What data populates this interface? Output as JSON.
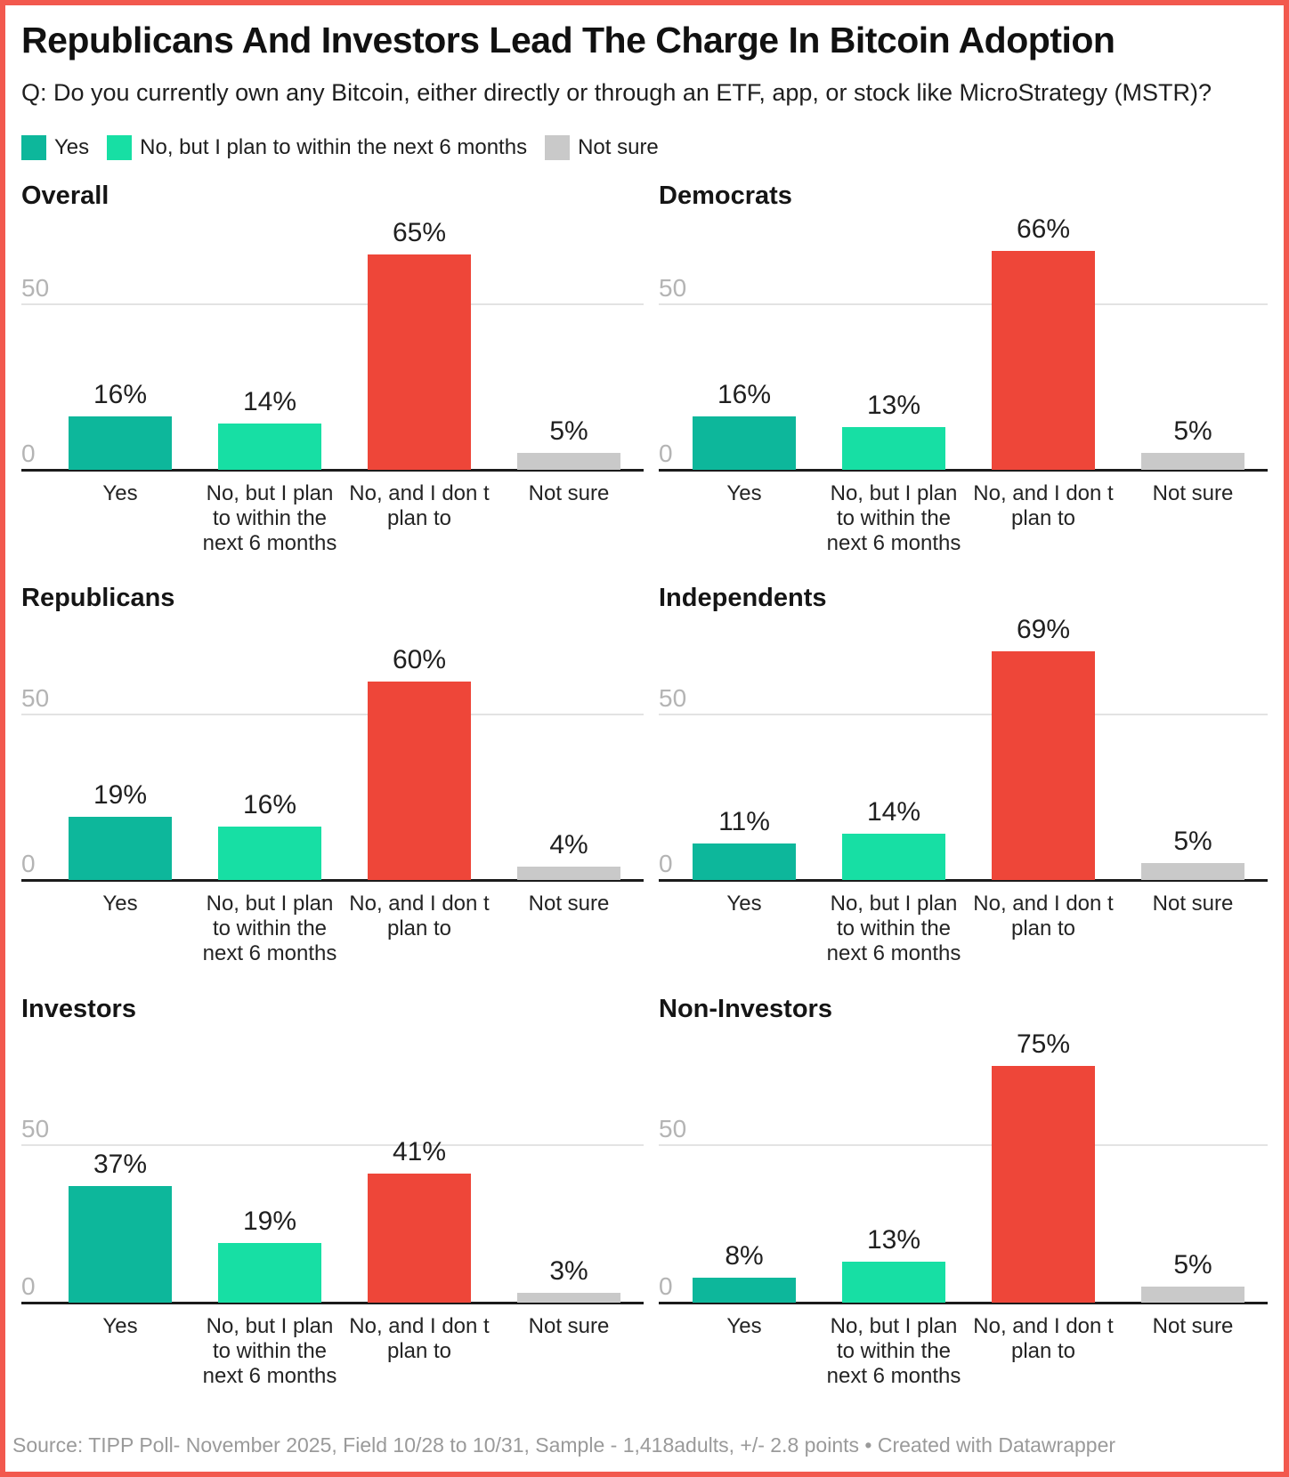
{
  "frame": {
    "border_color": "#f2594e"
  },
  "header": {
    "title": "Republicans And Investors Lead The Charge In Bitcoin Adoption",
    "question": "Q: Do you currently own any Bitcoin, either directly or through an ETF, app, or stock like MicroStrategy (MSTR)?"
  },
  "legend": {
    "items": [
      {
        "label": "Yes",
        "color": "#0db79b"
      },
      {
        "label": "No, but I plan to within the next 6 months",
        "color": "#17dfa4"
      },
      {
        "label": "Not sure",
        "color": "#c9c9c9"
      }
    ]
  },
  "chart_data": {
    "type": "bar",
    "layout": "small-multiples 2x3",
    "unit": "%",
    "categories": [
      "Yes",
      "No, but I plan to within the next 6 months",
      "No, and I don t plan to",
      "Not sure"
    ],
    "category_lines": [
      [
        "Yes"
      ],
      [
        "No, but I plan",
        "to within the",
        "next 6 months"
      ],
      [
        "No, and I don t",
        "plan to"
      ],
      [
        "Not sure"
      ]
    ],
    "bar_colors": [
      "#0db79b",
      "#17dfa4",
      "#ee4639",
      "#c9c9c9"
    ],
    "yticks": [
      "0",
      "50"
    ],
    "ylim": [
      0,
      80
    ],
    "grid": "y at 0 and 50",
    "panels": [
      {
        "title": "Overall",
        "values": [
          16,
          14,
          65,
          5
        ]
      },
      {
        "title": "Democrats",
        "values": [
          16,
          13,
          66,
          5
        ]
      },
      {
        "title": "Republicans",
        "values": [
          19,
          16,
          60,
          4
        ]
      },
      {
        "title": "Independents",
        "values": [
          11,
          14,
          69,
          5
        ]
      },
      {
        "title": "Investors",
        "values": [
          37,
          19,
          41,
          3
        ]
      },
      {
        "title": "Non-Investors",
        "values": [
          8,
          13,
          75,
          5
        ]
      }
    ]
  },
  "footer": {
    "source": "Source: TIPP Poll- November 2025, Field 10/28 to 10/31, Sample - 1,418adults, +/- 2.8 points • Created with Datawrapper"
  }
}
